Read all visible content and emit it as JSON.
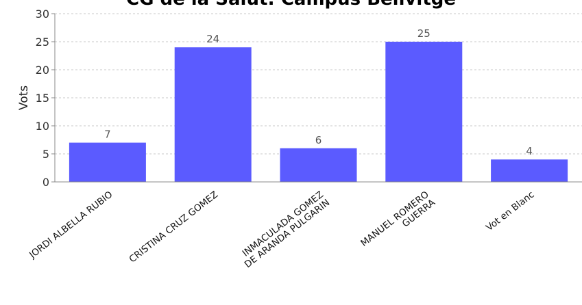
{
  "chart_data": {
    "type": "bar",
    "title": "CG de la Salut: Campus Bellvitge",
    "ylabel": "Vots",
    "ylim": [
      0,
      30
    ],
    "yticks": [
      0,
      5,
      10,
      15,
      20,
      25,
      30
    ],
    "grid": true,
    "categories": [
      [
        "JORDI ALBELLA RUBIO"
      ],
      [
        "CRISTINA CRUZ GOMEZ"
      ],
      [
        "INMACULADA GOMEZ",
        "DE ARANDA PULGARIN"
      ],
      [
        "MANUEL ROMERO",
        "GUERRA"
      ],
      [
        "Vot en Blanc"
      ]
    ],
    "values": [
      7,
      24,
      6,
      25,
      4
    ],
    "bar_color": "#5b5bff"
  }
}
